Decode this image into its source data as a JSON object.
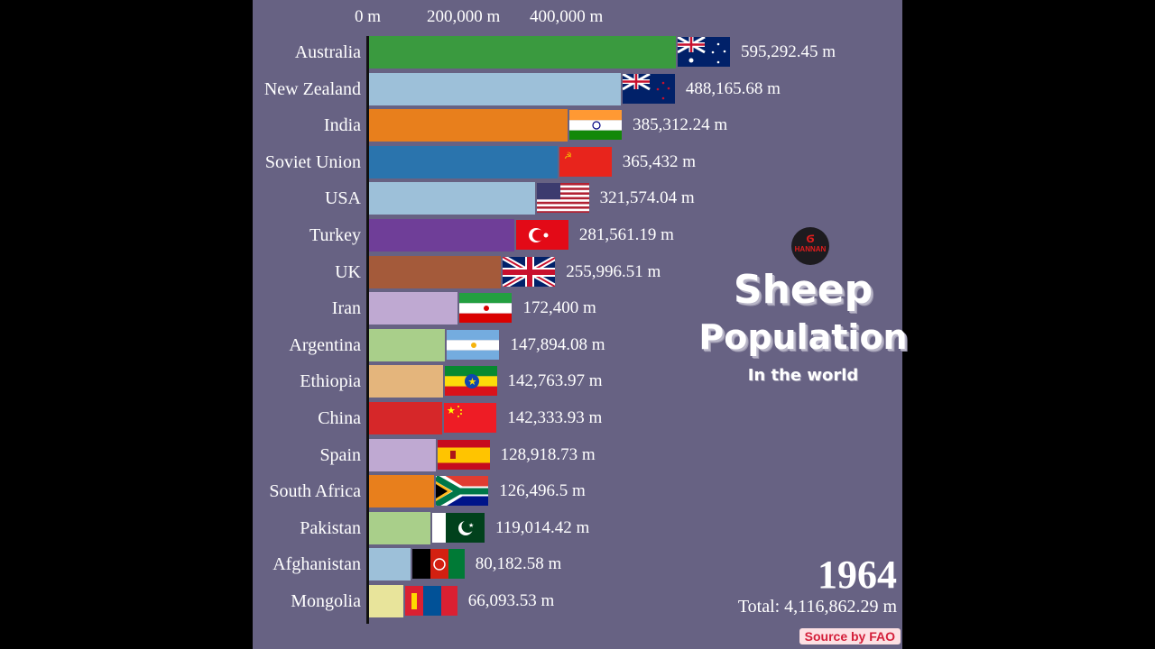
{
  "chart_data": {
    "type": "bar",
    "orientation": "horizontal",
    "title": "Sheep Population",
    "subtitle": "In the world",
    "year": "1964",
    "total_label": "Total: 4,116,862.29 m",
    "source": "Source by FAO",
    "xlabel": "",
    "ylabel": "",
    "x_ticks": [
      "0 m",
      "200,000 m",
      "400,000 m"
    ],
    "xlim": [
      0,
      600000
    ],
    "categories": [
      "Australia",
      "New Zealand",
      "India",
      "Soviet Union",
      "USA",
      "Turkey",
      "UK",
      "Iran",
      "Argentina",
      "Ethiopia",
      "China",
      "Spain",
      "South Africa",
      "Pakistan",
      "Afghanistan",
      "Mongolia"
    ],
    "values": [
      595292.45,
      488165.68,
      385312.24,
      365432,
      321574.04,
      281561.19,
      255996.51,
      172400,
      147894.08,
      142763.97,
      142333.93,
      128918.73,
      126496.5,
      119014.42,
      80182.58,
      66093.53
    ],
    "value_labels": [
      "595,292.45 m",
      "488,165.68 m",
      "385,312.24 m",
      "365,432 m",
      "321,574.04 m",
      "281,561.19 m",
      "255,996.51 m",
      "172,400 m",
      "147,894.08 m",
      "142,763.97 m",
      "142,333.93 m",
      "128,918.73 m",
      "126,496.5 m",
      "119,014.42 m",
      "80,182.58 m",
      "66,093.53 m"
    ],
    "colors": [
      "#3a9a3f",
      "#9dc0d9",
      "#e87f1c",
      "#2a74ad",
      "#9dc0d9",
      "#6f3e98",
      "#a45a3a",
      "#bfa9d2",
      "#a9cf8a",
      "#e4b57c",
      "#d62729",
      "#bfa9d2",
      "#e87f1c",
      "#a9cf8a",
      "#9dc0d9",
      "#e8e49b"
    ],
    "grid": false,
    "legend": "none"
  },
  "axis": {
    "ticks": [
      "0 m",
      "200,000 m",
      "400,000 m"
    ]
  },
  "rows": [
    {
      "name": "Australia",
      "label": "Australia",
      "value": "595,292.45 m",
      "flag": "australia-flag-icon"
    },
    {
      "name": "New Zealand",
      "label": "New Zealand",
      "value": "488,165.68 m",
      "flag": "new-zealand-flag-icon"
    },
    {
      "name": "India",
      "label": "India",
      "value": "385,312.24 m",
      "flag": "india-flag-icon"
    },
    {
      "name": "Soviet Union",
      "label": "Soviet Union",
      "value": "365,432 m",
      "flag": "soviet-union-flag-icon"
    },
    {
      "name": "USA",
      "label": "USA",
      "value": "321,574.04 m",
      "flag": "usa-flag-icon"
    },
    {
      "name": "Turkey",
      "label": "Turkey",
      "value": "281,561.19 m",
      "flag": "turkey-flag-icon"
    },
    {
      "name": "UK",
      "label": "UK",
      "value": "255,996.51 m",
      "flag": "uk-flag-icon"
    },
    {
      "name": "Iran",
      "label": "Iran",
      "value": "172,400 m",
      "flag": "iran-flag-icon"
    },
    {
      "name": "Argentina",
      "label": "Argentina",
      "value": "147,894.08 m",
      "flag": "argentina-flag-icon"
    },
    {
      "name": "Ethiopia",
      "label": "Ethiopia",
      "value": "142,763.97 m",
      "flag": "ethiopia-flag-icon"
    },
    {
      "name": "China",
      "label": "China",
      "value": "142,333.93 m",
      "flag": "china-flag-icon"
    },
    {
      "name": "Spain",
      "label": "Spain",
      "value": "128,918.73 m",
      "flag": "spain-flag-icon"
    },
    {
      "name": "South Africa",
      "label": "South Africa",
      "value": "126,496.5 m",
      "flag": "south-africa-flag-icon"
    },
    {
      "name": "Pakistan",
      "label": "Pakistan",
      "value": "119,014.42 m",
      "flag": "pakistan-flag-icon"
    },
    {
      "name": "Afghanistan",
      "label": "Afghanistan",
      "value": "80,182.58 m",
      "flag": "afghanistan-flag-icon"
    },
    {
      "name": "Mongolia",
      "label": "Mongolia",
      "value": "66,093.53 m",
      "flag": "mongolia-flag-icon"
    }
  ],
  "branding": {
    "logo_text": "HANNAN",
    "title_line1": "Sheep",
    "title_line2": "Population",
    "title_line3": "In the world"
  },
  "footer": {
    "year": "1964",
    "total": "Total: 4,116,862.29 m",
    "source": "Source by FAO"
  },
  "colors": {
    "background": "#676283",
    "text": "#ffffff",
    "source_badge_bg": "#fde0e3",
    "source_badge_text": "#d41f3a"
  }
}
